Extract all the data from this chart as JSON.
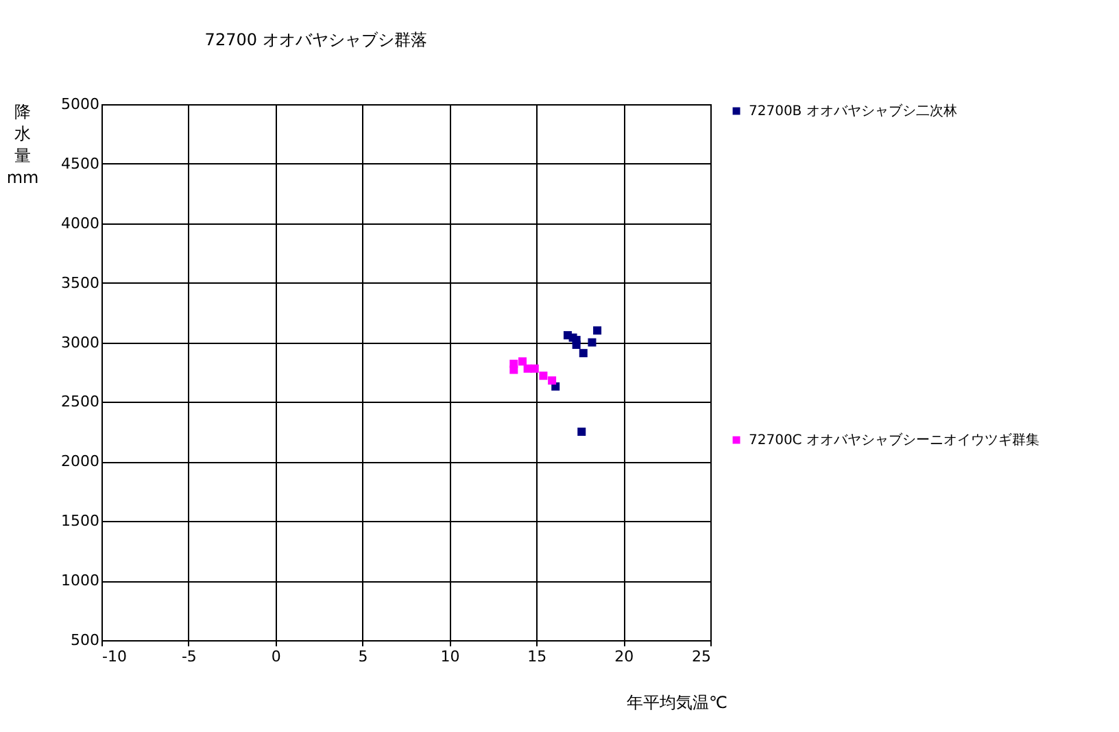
{
  "chart_data": {
    "type": "scatter",
    "title": "72700 オオバヤシャブシ群落",
    "xlabel": "年平均気温℃",
    "ylabel": "降水量 mm",
    "xlim": [
      -10,
      25
    ],
    "xticks": [
      -10,
      -5,
      0,
      5,
      10,
      15,
      20,
      25
    ],
    "ylim": [
      500,
      5000
    ],
    "yticks": [
      500,
      1000,
      1500,
      2000,
      2500,
      3000,
      3500,
      4000,
      4500,
      5000
    ],
    "grid": true,
    "legend": "right",
    "marker": "square",
    "series": [
      {
        "name": "72700B オオバヤシャブシ二次林",
        "color": "#000080",
        "x": [
          16.8,
          17.1,
          17.3,
          17.3,
          18.2,
          18.5,
          17.7,
          16.1,
          17.6
        ],
        "values": [
          3060,
          3040,
          3020,
          2980,
          3000,
          3100,
          2910,
          2630,
          2250
        ]
      },
      {
        "name": "72700C オオバヤシャブシーニオイウツギ群集",
        "color": "#ff00ff",
        "x": [
          13.7,
          13.7,
          14.2,
          14.5,
          14.9,
          15.4,
          15.9
        ],
        "values": [
          2820,
          2770,
          2840,
          2780,
          2780,
          2720,
          2680
        ]
      }
    ]
  }
}
